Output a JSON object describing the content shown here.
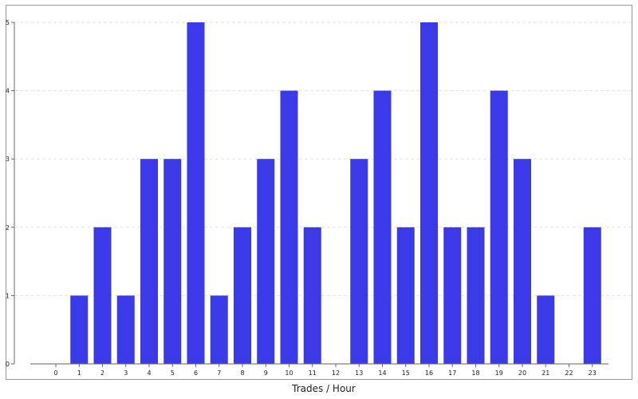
{
  "chart_data": {
    "type": "bar",
    "title": "",
    "xlabel": "Trades / Hour",
    "ylabel": "",
    "categories": [
      "0",
      "1",
      "2",
      "3",
      "4",
      "5",
      "6",
      "7",
      "8",
      "9",
      "10",
      "11",
      "12",
      "13",
      "14",
      "15",
      "16",
      "17",
      "18",
      "19",
      "20",
      "21",
      "22",
      "23"
    ],
    "values": [
      0,
      1,
      2,
      1,
      3,
      3,
      5,
      1,
      2,
      3,
      4,
      2,
      0,
      3,
      4,
      2,
      5,
      2,
      2,
      4,
      3,
      1,
      0,
      2
    ],
    "ylim": [
      0,
      5
    ],
    "yticks": [
      0,
      1,
      2,
      3,
      4,
      5
    ],
    "grid": true,
    "legend": "none",
    "bar_color": "#3a3ae8",
    "grid_color": "#e2e2e2",
    "frame_color": "#999999"
  }
}
